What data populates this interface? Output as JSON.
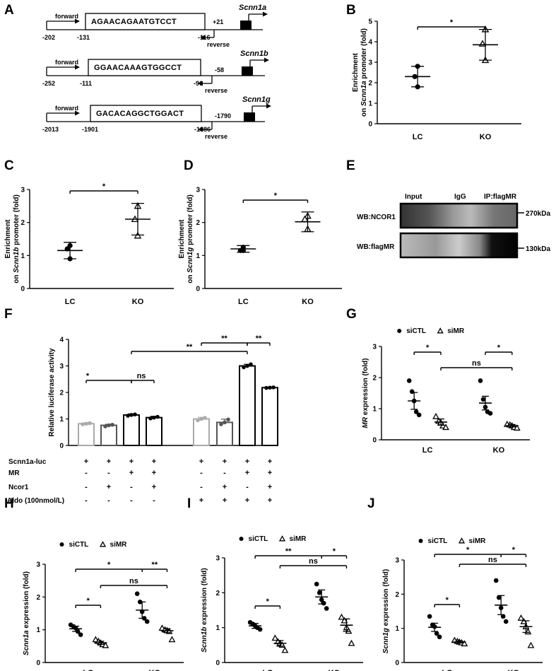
{
  "panels": {
    "A": {
      "label": "A",
      "constructs": [
        {
          "forward": "forward",
          "reverse": "reverse",
          "sequence": "AGAACAGAATGTCCT",
          "gene": "Scnn1a",
          "pos_fwd": "-202",
          "pos_start": "-131",
          "pos_end": "-116",
          "pos_rev": "+21"
        },
        {
          "forward": "forward",
          "reverse": "reverse",
          "sequence": "GGAACAAAGTGGCCT",
          "gene": "Scnn1b",
          "pos_fwd": "-252",
          "pos_start": "-111",
          "pos_end": "-96",
          "pos_rev": "-58"
        },
        {
          "forward": "forward",
          "reverse": "reverse",
          "sequence": "GACACAGGCTGGACT",
          "gene": "Scnn1g",
          "pos_fwd": "-2013",
          "pos_start": "-1901",
          "pos_end": "-1886",
          "pos_rev": "-1790"
        }
      ]
    },
    "B": {
      "label": "B"
    },
    "C": {
      "label": "C"
    },
    "D": {
      "label": "D"
    },
    "E": {
      "label": "E",
      "lanes": [
        "Input",
        "IgG",
        "IP:flagMR"
      ],
      "rows": [
        "WB:NCOR1",
        "WB:flagMR"
      ],
      "sizes": [
        "270kDa",
        "130kDa"
      ]
    },
    "F": {
      "label": "F",
      "conditions": [
        {
          "name": "Scnn1a-luc",
          "marks": [
            "+",
            "+",
            "+",
            "+",
            "+",
            "+",
            "+",
            "+"
          ]
        },
        {
          "name": "MR",
          "marks": [
            "-",
            "-",
            "+",
            "+",
            "-",
            "-",
            "+",
            "+"
          ]
        },
        {
          "name": "Ncor1",
          "marks": [
            "-",
            "+",
            "-",
            "+",
            "-",
            "+",
            "-",
            "+"
          ]
        },
        {
          "name": "Aldo (100nmol/L)",
          "marks": [
            "-",
            "-",
            "-",
            "-",
            "+",
            "+",
            "+",
            "+"
          ]
        }
      ]
    },
    "G": {
      "label": "G"
    },
    "H": {
      "label": "H"
    },
    "I": {
      "label": "I"
    },
    "J": {
      "label": "J"
    }
  },
  "chart_data": [
    {
      "id": "B",
      "type": "scatter",
      "ylabel_line1": "Enrichment",
      "ylabel_line2": "on Scnn1a promoter (fold)",
      "categories": [
        "LC",
        "KO"
      ],
      "ylim": [
        0,
        5
      ],
      "yticks": [
        0,
        1,
        2,
        3,
        4,
        5
      ],
      "points": [
        [
          2.8,
          2.3,
          1.8
        ],
        [
          4.6,
          3.9,
          3.1
        ]
      ],
      "means": [
        2.3,
        3.85
      ],
      "errors": [
        0.5,
        0.75
      ],
      "annotations": [
        {
          "text": "*",
          "between": [
            "LC",
            "KO"
          ]
        }
      ]
    },
    {
      "id": "C",
      "type": "scatter",
      "ylabel_line1": "Enrichment",
      "ylabel_line2": "on Scnn1b promoter (fold)",
      "categories": [
        "LC",
        "KO"
      ],
      "ylim": [
        0,
        3
      ],
      "yticks": [
        0,
        1,
        2,
        3
      ],
      "points": [
        [
          1.3,
          1.2,
          0.9
        ],
        [
          2.5,
          2.1,
          1.6
        ]
      ],
      "means": [
        1.15,
        2.1
      ],
      "errors": [
        0.25,
        0.48
      ],
      "annotations": [
        {
          "text": "*",
          "between": [
            "LC",
            "KO"
          ]
        }
      ]
    },
    {
      "id": "D",
      "type": "scatter",
      "ylabel_line1": "Enrichment",
      "ylabel_line2": "on Scnn1g promoter (fold)",
      "categories": [
        "LC",
        "KO"
      ],
      "ylim": [
        0,
        3
      ],
      "yticks": [
        0,
        1,
        2,
        3
      ],
      "points": [
        [
          1.25,
          1.15,
          1.15
        ],
        [
          2.2,
          2.1,
          1.8
        ]
      ],
      "means": [
        1.2,
        2.02
      ],
      "errors": [
        0.1,
        0.3
      ],
      "annotations": [
        {
          "text": "*",
          "between": [
            "LC",
            "KO"
          ]
        }
      ]
    },
    {
      "id": "F",
      "type": "bar",
      "ylabel": "Relative luciferase activity",
      "ylim": [
        0,
        4
      ],
      "yticks": [
        0,
        1,
        2,
        3,
        4
      ],
      "values": [
        0.82,
        0.76,
        1.15,
        1.05,
        1.0,
        0.87,
        3.0,
        2.18
      ],
      "errors": [
        0.03,
        0.04,
        0.04,
        0.05,
        0.06,
        0.12,
        0.06,
        0.02
      ],
      "points": [
        [
          0.8,
          0.82,
          0.84
        ],
        [
          0.72,
          0.76,
          0.78
        ],
        [
          1.12,
          1.15,
          1.17
        ],
        [
          1.02,
          1.05,
          1.08
        ],
        [
          0.95,
          1.0,
          1.04
        ],
        [
          0.8,
          0.87,
          0.98
        ],
        [
          2.95,
          3.0,
          3.06
        ],
        [
          2.17,
          2.18,
          2.19
        ]
      ],
      "colors": [
        "#aaaaaa",
        "#555555",
        "#000000",
        "#000000",
        "#aaaaaa",
        "#555555",
        "#000000",
        "#000000"
      ],
      "annotations": [
        {
          "text": "*",
          "bars": [
            0,
            2
          ]
        },
        {
          "text": "ns",
          "bars": [
            2,
            3
          ]
        },
        {
          "text": "**",
          "bars": [
            2,
            6
          ]
        },
        {
          "text": "**",
          "bars": [
            4,
            6
          ]
        },
        {
          "text": "**",
          "bars": [
            6,
            7
          ]
        }
      ]
    },
    {
      "id": "G",
      "type": "scatter",
      "ylabel_gene": "MR",
      "ylabel_rest": " expression (fold)",
      "categories": [
        "LC",
        "KO"
      ],
      "legend": [
        "siCTL",
        "siMR"
      ],
      "ylim": [
        0,
        3
      ],
      "yticks": [
        0,
        1,
        2,
        3
      ],
      "groups": [
        {
          "points": [
            1.9,
            1.55,
            1.25,
            0.9,
            0.8
          ],
          "mean": 1.25,
          "error": 0.27
        },
        {
          "points": [
            0.75,
            0.6,
            0.55,
            0.45,
            0.4
          ],
          "mean": 0.57,
          "error": 0.1
        },
        {
          "points": [
            1.9,
            1.3,
            1.05,
            0.9,
            0.85
          ],
          "mean": 1.18,
          "error": 0.22
        },
        {
          "points": [
            0.5,
            0.48,
            0.45,
            0.4,
            0.38
          ],
          "mean": 0.45,
          "error": 0.04
        }
      ],
      "annotations": [
        {
          "text": "*",
          "groups": [
            0,
            1
          ]
        },
        {
          "text": "*",
          "groups": [
            2,
            3
          ]
        },
        {
          "text": "ns",
          "groups": [
            1,
            3
          ]
        }
      ]
    },
    {
      "id": "H",
      "type": "scatter",
      "ylabel_gene": "Scnn1a",
      "ylabel_rest": " expression (fold)",
      "categories": [
        "LC",
        "KO"
      ],
      "legend": [
        "siCTL",
        "siMR"
      ],
      "ylim": [
        0,
        3
      ],
      "yticks": [
        0,
        1,
        2,
        3
      ],
      "groups": [
        {
          "points": [
            1.15,
            1.1,
            1.05,
            0.95,
            0.85
          ],
          "mean": 1.03,
          "error": 0.08
        },
        {
          "points": [
            0.7,
            0.65,
            0.6,
            0.55,
            0.52
          ],
          "mean": 0.6,
          "error": 0.05
        },
        {
          "points": [
            2.1,
            1.85,
            1.55,
            1.35,
            1.25
          ],
          "mean": 1.6,
          "error": 0.25
        },
        {
          "points": [
            1.05,
            1.0,
            0.98,
            0.95,
            0.7
          ],
          "mean": 0.97,
          "error": 0.06
        }
      ],
      "annotations": [
        {
          "text": "*",
          "groups": [
            0,
            1
          ]
        },
        {
          "text": "*",
          "groups": [
            0,
            2
          ]
        },
        {
          "text": "**",
          "groups": [
            2,
            3
          ]
        },
        {
          "text": "ns",
          "groups": [
            1,
            3
          ]
        }
      ]
    },
    {
      "id": "I",
      "type": "scatter",
      "ylabel_gene": "Scnn1b",
      "ylabel_rest": " expression (fold)",
      "categories": [
        "LC",
        "KO"
      ],
      "legend": [
        "siCTL",
        "siMR"
      ],
      "ylim": [
        0,
        3
      ],
      "yticks": [
        0,
        1,
        2,
        3
      ],
      "groups": [
        {
          "points": [
            1.15,
            1.1,
            1.05,
            1.0,
            0.95
          ],
          "mean": 1.05,
          "error": 0.07
        },
        {
          "points": [
            0.7,
            0.6,
            0.55,
            0.5,
            0.35
          ],
          "mean": 0.55,
          "error": 0.08
        },
        {
          "points": [
            2.25,
            2.0,
            1.8,
            1.7,
            1.55
          ],
          "mean": 1.88,
          "error": 0.2
        },
        {
          "points": [
            1.3,
            1.2,
            1.0,
            0.9,
            0.55
          ],
          "mean": 1.07,
          "error": 0.18
        }
      ],
      "annotations": [
        {
          "text": "*",
          "groups": [
            0,
            1
          ]
        },
        {
          "text": "**",
          "groups": [
            0,
            2
          ]
        },
        {
          "text": "*",
          "groups": [
            2,
            3
          ]
        },
        {
          "text": "ns",
          "groups": [
            1,
            3
          ]
        }
      ]
    },
    {
      "id": "J",
      "type": "scatter",
      "ylabel_gene": "Scnn1g",
      "ylabel_rest": " expression (fold)",
      "categories": [
        "LC",
        "KO"
      ],
      "legend": [
        "siCTL",
        "siMR"
      ],
      "ylim": [
        0,
        3
      ],
      "yticks": [
        0,
        1,
        2,
        3
      ],
      "groups": [
        {
          "points": [
            1.35,
            1.1,
            1.05,
            0.85,
            0.75
          ],
          "mean": 1.03,
          "error": 0.12
        },
        {
          "points": [
            0.65,
            0.62,
            0.6,
            0.58,
            0.55
          ],
          "mean": 0.6,
          "error": 0.03
        },
        {
          "points": [
            2.4,
            1.9,
            1.6,
            1.35,
            1.2
          ],
          "mean": 1.68,
          "error": 0.28
        },
        {
          "points": [
            1.3,
            1.2,
            1.05,
            0.9,
            0.5
          ],
          "mean": 1.05,
          "error": 0.17
        }
      ],
      "annotations": [
        {
          "text": "*",
          "groups": [
            0,
            1
          ]
        },
        {
          "text": "*",
          "groups": [
            0,
            2
          ]
        },
        {
          "text": "*",
          "groups": [
            2,
            3
          ]
        },
        {
          "text": "ns",
          "groups": [
            1,
            3
          ]
        }
      ]
    }
  ]
}
